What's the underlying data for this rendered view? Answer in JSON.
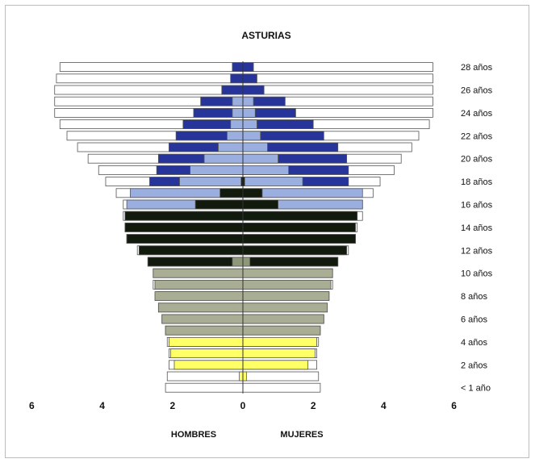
{
  "chart_data": {
    "type": "bar",
    "subtype": "population-pyramid-overlay",
    "title": "ASTURIAS",
    "left_label": "HOMBRES",
    "right_label": "MUJERES",
    "x_ticks": [
      6,
      4,
      2,
      0,
      2,
      4,
      6
    ],
    "xlim": [
      -6,
      6
    ],
    "category_labels": [
      "28 años",
      "26 años",
      "24 años",
      "22 años",
      "20 años",
      "18 años",
      "16 años",
      "14 años",
      "12 años",
      "10 años",
      "8 años",
      "6 años",
      "4 años",
      "2 años",
      "< 1 año"
    ],
    "ages": [
      28,
      27,
      26,
      25,
      24,
      23,
      22,
      21,
      20,
      19,
      18,
      17,
      16,
      15,
      14,
      13,
      12,
      11,
      10,
      9,
      8,
      7,
      6,
      5,
      4,
      3,
      2,
      1,
      0
    ],
    "series": [
      {
        "role": "outline",
        "color": "#ffffff",
        "left": [
          5.2,
          5.3,
          5.35,
          5.35,
          5.35,
          5.2,
          5.0,
          4.7,
          4.4,
          4.1,
          3.9,
          3.6,
          3.4,
          3.4,
          3.35,
          3.3,
          3.0,
          2.7,
          2.55,
          2.55,
          2.45,
          2.4,
          2.3,
          2.2,
          2.15,
          2.1,
          2.1,
          2.15,
          2.2
        ],
        "right": [
          5.4,
          5.4,
          5.4,
          5.4,
          5.4,
          5.3,
          5.0,
          4.8,
          4.5,
          4.3,
          3.9,
          3.7,
          3.4,
          3.4,
          3.25,
          3.2,
          3.0,
          2.7,
          2.55,
          2.55,
          2.45,
          2.4,
          2.3,
          2.2,
          2.15,
          2.1,
          2.1,
          2.15,
          2.2
        ]
      },
      {
        "role": "dark-blue",
        "color": "#27349a",
        "left": [
          0.3,
          0.35,
          0.6,
          1.2,
          1.4,
          1.7,
          1.9,
          2.1,
          2.4,
          2.45,
          2.65,
          0,
          0,
          0,
          0,
          0,
          0,
          0,
          0,
          0,
          0,
          0,
          0,
          0,
          0,
          0,
          0,
          0,
          0
        ],
        "right": [
          0.3,
          0.4,
          0.6,
          1.2,
          1.5,
          2.0,
          2.3,
          2.7,
          2.95,
          3.0,
          3.0,
          0,
          0,
          0,
          0,
          0,
          0,
          0,
          0,
          0,
          0,
          0,
          0,
          0,
          0,
          0,
          0,
          0,
          0
        ]
      },
      {
        "role": "light-blue",
        "color": "#9baee0",
        "left": [
          0,
          0,
          0,
          0.3,
          0.3,
          0.35,
          0.45,
          0.7,
          1.1,
          1.5,
          1.8,
          3.2,
          3.3,
          0,
          0,
          0,
          0,
          0,
          0,
          0,
          0,
          0,
          0,
          0,
          0,
          0,
          0,
          0,
          0
        ],
        "right": [
          0,
          0,
          0,
          0.3,
          0.35,
          0.4,
          0.5,
          0.7,
          1.0,
          1.3,
          1.7,
          3.4,
          3.4,
          0,
          0,
          0,
          0,
          0,
          0,
          0,
          0,
          0,
          0,
          0,
          0,
          0,
          0,
          0,
          0
        ]
      },
      {
        "role": "black",
        "color": "#111a0c",
        "left": [
          0,
          0,
          0,
          0,
          0,
          0,
          0,
          0,
          0,
          0,
          0.05,
          0.65,
          1.35,
          3.35,
          3.35,
          3.3,
          2.95,
          2.7,
          0,
          0,
          0,
          0,
          0,
          0,
          0,
          0,
          0,
          0,
          0
        ],
        "right": [
          0,
          0,
          0,
          0,
          0,
          0,
          0,
          0,
          0,
          0,
          0.05,
          0.55,
          1.0,
          3.25,
          3.2,
          3.2,
          2.95,
          2.7,
          0,
          0,
          0,
          0,
          0,
          0,
          0,
          0,
          0,
          0,
          0
        ]
      },
      {
        "role": "olive-inner",
        "color": "#8e9879",
        "left": [
          0,
          0,
          0,
          0,
          0,
          0,
          0,
          0,
          0,
          0,
          0,
          0,
          0,
          0,
          0,
          0,
          0,
          0.3,
          0,
          0,
          0,
          0,
          0,
          0,
          0,
          0,
          0,
          0,
          0
        ],
        "right": [
          0,
          0,
          0,
          0,
          0,
          0,
          0,
          0,
          0,
          0,
          0,
          0,
          0,
          0,
          0,
          0,
          0,
          0.2,
          0,
          0,
          0,
          0,
          0,
          0,
          0,
          0,
          0,
          0,
          0
        ]
      },
      {
        "role": "gray-green",
        "color": "#a8ae93",
        "left": [
          0,
          0,
          0,
          0,
          0,
          0,
          0,
          0,
          0,
          0,
          0,
          0,
          0,
          0,
          0,
          0,
          0,
          0,
          2.55,
          2.5,
          2.5,
          2.4,
          2.3,
          2.2,
          0,
          0,
          0,
          0,
          0
        ],
        "right": [
          0,
          0,
          0,
          0,
          0,
          0,
          0,
          0,
          0,
          0,
          0,
          0,
          0,
          0,
          0,
          0,
          0,
          0,
          2.55,
          2.5,
          2.45,
          2.4,
          2.3,
          2.2,
          0,
          0,
          0,
          0,
          0
        ]
      },
      {
        "role": "yellow",
        "color": "#ffff66",
        "left": [
          0,
          0,
          0,
          0,
          0,
          0,
          0,
          0,
          0,
          0,
          0,
          0,
          0,
          0,
          0,
          0,
          0,
          0,
          0,
          0,
          0,
          0,
          0,
          0,
          2.1,
          2.05,
          1.95,
          0.1,
          0
        ],
        "right": [
          0,
          0,
          0,
          0,
          0,
          0,
          0,
          0,
          0,
          0,
          0,
          0,
          0,
          0,
          0,
          0,
          0,
          0,
          0,
          0,
          0,
          0,
          0,
          0,
          2.1,
          2.05,
          1.85,
          0.1,
          0
        ]
      }
    ]
  }
}
